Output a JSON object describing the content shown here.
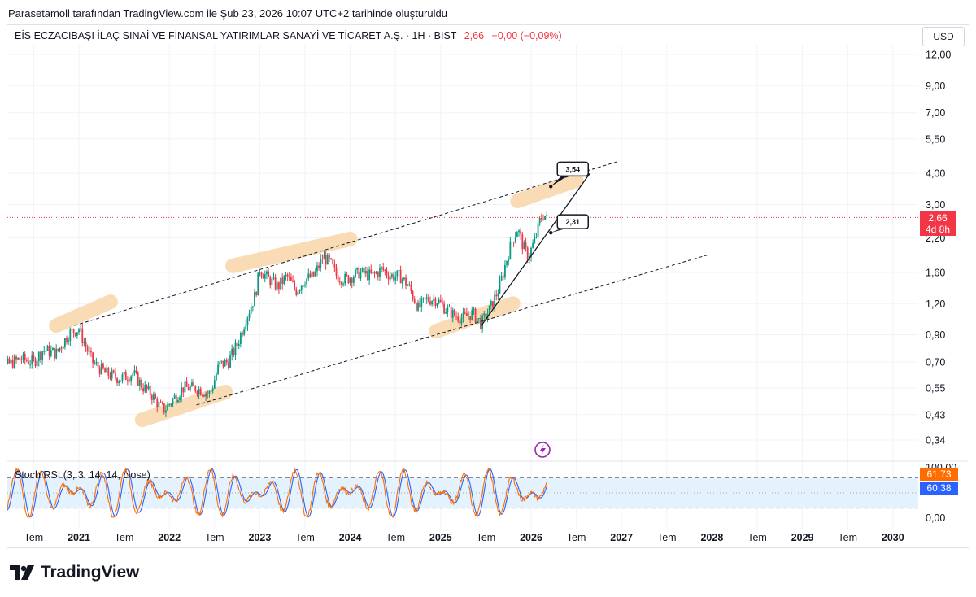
{
  "caption": "Parasetamoll tarafından TradingView.com ile Şub 23, 2026 10:07 UTC+2 tarihinde oluşturuldu",
  "symbol": {
    "name": "EİS ECZACIBAŞI İLAÇ SINAİ VE FİNANSAL YATIRIMLAR SANAYİ VE TİCARET A.Ş. · 1H · BIST",
    "price": "2,66",
    "change": "−0,00 (−0,09%)"
  },
  "currency": "USD",
  "price_tag": {
    "value": "2,66",
    "countdown": "4d 8h"
  },
  "rsi": {
    "label": "Stoch RSI (3, 3, 14, 14, close)",
    "k_value": "61,73",
    "d_value": "60,38",
    "axis_labels": [
      "100,00",
      "0,00"
    ],
    "k_color": "#ff6d00",
    "d_color": "#2962ff"
  },
  "brand": "TradingView",
  "colors": {
    "up": "#089981",
    "down": "#f23645",
    "highlight": "#f9d9ad",
    "current_line": "#f23645",
    "rsi_band": "#e3f2fd",
    "alert": "#9c27b0"
  },
  "chart_data": {
    "type": "candlestick",
    "scale": "log",
    "ylim": [
      0.3,
      13.5
    ],
    "y_ticks": [
      "12,00",
      "9,00",
      "7,00",
      "5,50",
      "4,00",
      "3,00",
      "2,20",
      "1,60",
      "1,20",
      "0,90",
      "0,70",
      "0,55",
      "0,43",
      "0,34"
    ],
    "y_tick_values": [
      12,
      9,
      7,
      5.5,
      4,
      3,
      2.2,
      1.6,
      1.2,
      0.9,
      0.7,
      0.55,
      0.43,
      0.34
    ],
    "x_ticks": [
      "Tem",
      "2021",
      "Tem",
      "2022",
      "Tem",
      "2023",
      "Tem",
      "2024",
      "Tem",
      "2025",
      "Tem",
      "2026",
      "Tem",
      "2027",
      "Tem",
      "2028",
      "Tem",
      "2029",
      "Tem",
      "2030"
    ],
    "x_tick_years": [
      2020.5,
      2021,
      2021.5,
      2022,
      2022.5,
      2023,
      2023.5,
      2024,
      2024.5,
      2025,
      2025.5,
      2026,
      2026.5,
      2027,
      2027.5,
      2028,
      2028.5,
      2029,
      2029.5,
      2030
    ],
    "close_path": [
      [
        2020.0,
        0.45
      ],
      [
        2020.08,
        0.62
      ],
      [
        2020.2,
        0.68
      ],
      [
        2020.35,
        0.72
      ],
      [
        2020.5,
        0.7
      ],
      [
        2020.6,
        0.78
      ],
      [
        2020.75,
        0.76
      ],
      [
        2020.9,
        0.92
      ],
      [
        2021.0,
        0.95
      ],
      [
        2021.05,
        0.85
      ],
      [
        2021.15,
        0.7
      ],
      [
        2021.3,
        0.63
      ],
      [
        2021.45,
        0.6
      ],
      [
        2021.6,
        0.63
      ],
      [
        2021.7,
        0.56
      ],
      [
        2021.8,
        0.52
      ],
      [
        2021.9,
        0.46
      ],
      [
        2021.95,
        0.45
      ],
      [
        2022.05,
        0.5
      ],
      [
        2022.15,
        0.55
      ],
      [
        2022.3,
        0.55
      ],
      [
        2022.45,
        0.52
      ],
      [
        2022.55,
        0.68
      ],
      [
        2022.65,
        0.7
      ],
      [
        2022.75,
        0.82
      ],
      [
        2022.85,
        1.05
      ],
      [
        2022.95,
        1.3
      ],
      [
        2023.0,
        1.65
      ],
      [
        2023.1,
        1.5
      ],
      [
        2023.2,
        1.4
      ],
      [
        2023.3,
        1.55
      ],
      [
        2023.4,
        1.35
      ],
      [
        2023.5,
        1.5
      ],
      [
        2023.6,
        1.55
      ],
      [
        2023.7,
        1.85
      ],
      [
        2023.78,
        1.75
      ],
      [
        2023.85,
        1.55
      ],
      [
        2023.95,
        1.5
      ],
      [
        2024.1,
        1.6
      ],
      [
        2024.25,
        1.55
      ],
      [
        2024.35,
        1.65
      ],
      [
        2024.45,
        1.55
      ],
      [
        2024.55,
        1.55
      ],
      [
        2024.65,
        1.4
      ],
      [
        2024.75,
        1.15
      ],
      [
        2024.85,
        1.25
      ],
      [
        2024.95,
        1.25
      ],
      [
        2025.05,
        1.15
      ],
      [
        2025.15,
        1.08
      ],
      [
        2025.25,
        1.05
      ],
      [
        2025.35,
        1.1
      ],
      [
        2025.45,
        1.0
      ],
      [
        2025.55,
        1.15
      ],
      [
        2025.65,
        1.4
      ],
      [
        2025.72,
        1.75
      ],
      [
        2025.78,
        2.1
      ],
      [
        2025.85,
        2.4
      ],
      [
        2025.92,
        2.0
      ],
      [
        2025.97,
        1.85
      ],
      [
        2026.05,
        2.2
      ],
      [
        2026.1,
        2.6
      ],
      [
        2026.14,
        2.75
      ],
      [
        2026.18,
        2.6
      ]
    ],
    "annotations": [
      {
        "text": "3,54",
        "year": 2026.2,
        "price": 3.54
      },
      {
        "text": "2,31",
        "year": 2026.2,
        "price": 2.31
      }
    ],
    "channel": {
      "upper": [
        [
          2020.95,
          0.98
        ],
        [
          2026.95,
          4.45
        ]
      ],
      "lower": [
        [
          2022.3,
          0.47
        ],
        [
          2027.95,
          1.88
        ]
      ]
    },
    "trendline": [
      [
        2025.45,
        0.98
      ],
      [
        2026.65,
        4.0
      ]
    ],
    "current_price": 2.66
  }
}
